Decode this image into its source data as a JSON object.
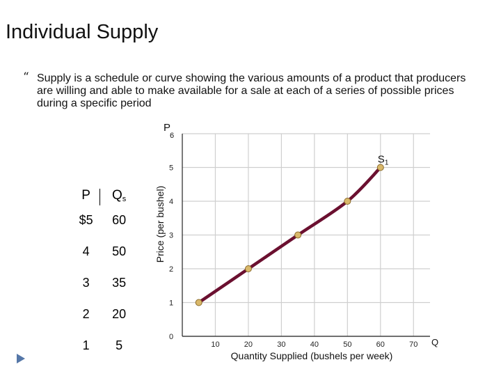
{
  "slide": {
    "title": "Individual Supply",
    "bullet": "Supply is a schedule or curve showing the various amounts of a product that producers are willing and able to make available for a sale at each of a series of possible prices during a specific period"
  },
  "schedule_table": {
    "header_p": "P",
    "header_q": "Q",
    "header_q_sub": "s",
    "rows": [
      {
        "p": "$5",
        "q": "60"
      },
      {
        "p": "4",
        "q": "50"
      },
      {
        "p": "3",
        "q": "35"
      },
      {
        "p": "2",
        "q": "20"
      },
      {
        "p": "1",
        "q": "5"
      }
    ]
  },
  "chart_data": {
    "type": "line",
    "title": "",
    "xlabel": "Quantity Supplied (bushels per week)",
    "ylabel": "Price (per bushel)",
    "x_axis_symbol": "Q",
    "y_axis_symbol": "P",
    "x": [
      5,
      20,
      35,
      50,
      60
    ],
    "series": [
      {
        "name": "S",
        "name_sub": "1",
        "values": [
          1,
          2,
          3,
          4,
          5
        ]
      }
    ],
    "xticks": [
      10,
      20,
      30,
      40,
      50,
      60,
      70
    ],
    "yticks": [
      0,
      1,
      2,
      3,
      4,
      5,
      6
    ],
    "xlim": [
      0,
      75
    ],
    "ylim": [
      0,
      6
    ],
    "grid": true,
    "line_color": "#6b1030",
    "point_color": "#d9b86a"
  },
  "colors": {
    "nav_arrow": "#5577a8"
  },
  "icons": {
    "bullet": "curly-quote-bullet",
    "nav": "play-triangle-icon"
  }
}
